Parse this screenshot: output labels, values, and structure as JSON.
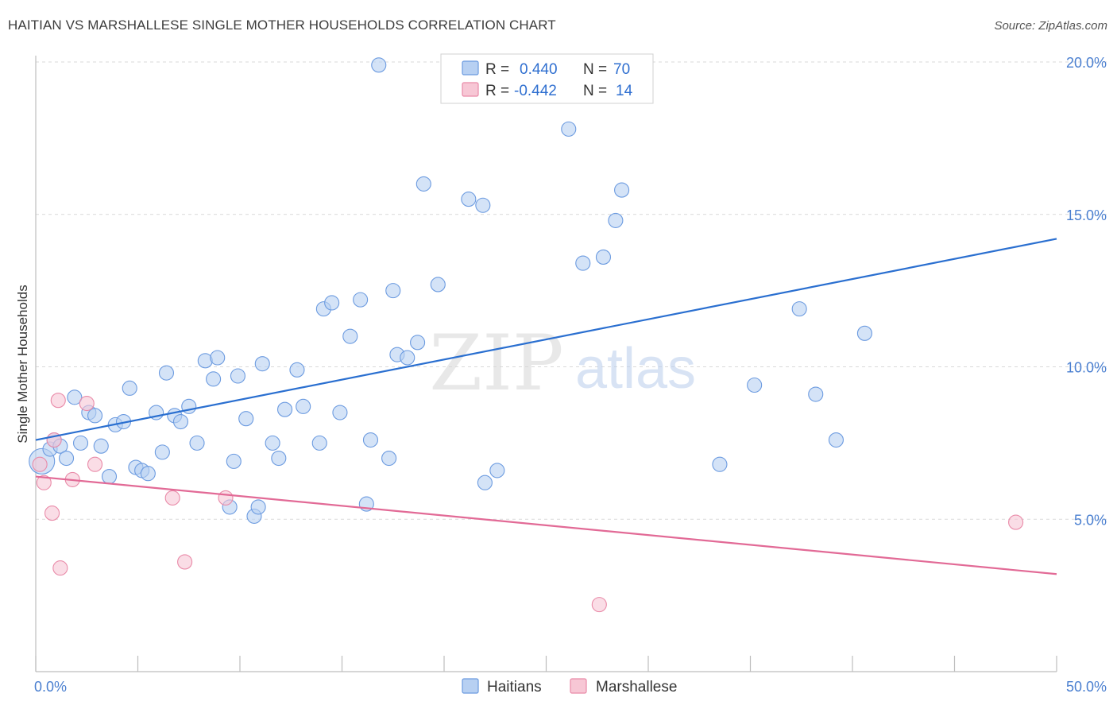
{
  "title": "HAITIAN VS MARSHALLESE SINGLE MOTHER HOUSEHOLDS CORRELATION CHART",
  "source": "Source: ZipAtlas.com",
  "watermark": {
    "zip": "ZIP",
    "atlas": "atlas"
  },
  "colors": {
    "haitians_fill": "#b7d0f2",
    "haitians_stroke": "#6c9be0",
    "haitians_line": "#2a6fd0",
    "marshallese_fill": "#f7c7d5",
    "marshallese_stroke": "#e98aa8",
    "marshallese_line": "#e26a96",
    "grid": "#d9d9d9",
    "axis": "#bdbdbd",
    "tick_label": "#4a7fd0"
  },
  "legend": {
    "rows": [
      {
        "r_label": "R =",
        "r_value": "0.440",
        "n_label": "N =",
        "n_value": "70"
      },
      {
        "r_label": "R =",
        "r_value": "-0.442",
        "n_label": "N =",
        "n_value": "14"
      }
    ]
  },
  "chart_data": {
    "type": "scatter",
    "title": "HAITIAN VS MARSHALLESE SINGLE MOTHER HOUSEHOLDS CORRELATION CHART",
    "xlabel": "",
    "ylabel": "Single Mother Households",
    "xlim": [
      0,
      50
    ],
    "ylim": [
      0,
      20.5
    ],
    "x_tick_labels": [
      "0.0%",
      "50.0%"
    ],
    "y_ticks": [
      5,
      10,
      15,
      20
    ],
    "y_tick_labels": [
      "5.0%",
      "10.0%",
      "15.0%",
      "20.0%"
    ],
    "grid": "horizontal dashed",
    "legend_position": "top-center",
    "series": [
      {
        "name": "Haitians",
        "R": 0.44,
        "N": 70,
        "trend": {
          "x": [
            0,
            50
          ],
          "y": [
            7.6,
            14.2
          ]
        },
        "points": [
          [
            0.3,
            6.9
          ],
          [
            0.7,
            7.3
          ],
          [
            0.9,
            7.6
          ],
          [
            1.2,
            7.4
          ],
          [
            1.5,
            7.0
          ],
          [
            1.9,
            9.0
          ],
          [
            2.2,
            7.5
          ],
          [
            2.6,
            8.5
          ],
          [
            2.9,
            8.4
          ],
          [
            3.2,
            7.4
          ],
          [
            3.6,
            6.4
          ],
          [
            3.9,
            8.1
          ],
          [
            4.3,
            8.2
          ],
          [
            4.6,
            9.3
          ],
          [
            4.9,
            6.7
          ],
          [
            5.2,
            6.6
          ],
          [
            5.5,
            6.5
          ],
          [
            5.9,
            8.5
          ],
          [
            6.2,
            7.2
          ],
          [
            6.4,
            9.8
          ],
          [
            6.8,
            8.4
          ],
          [
            7.1,
            8.2
          ],
          [
            7.5,
            8.7
          ],
          [
            7.9,
            7.5
          ],
          [
            8.3,
            10.2
          ],
          [
            8.7,
            9.6
          ],
          [
            8.9,
            10.3
          ],
          [
            9.5,
            5.4
          ],
          [
            9.7,
            6.9
          ],
          [
            9.9,
            9.7
          ],
          [
            10.3,
            8.3
          ],
          [
            10.7,
            5.1
          ],
          [
            10.9,
            5.4
          ],
          [
            11.1,
            10.1
          ],
          [
            11.6,
            7.5
          ],
          [
            11.9,
            7.0
          ],
          [
            12.2,
            8.6
          ],
          [
            12.8,
            9.9
          ],
          [
            13.1,
            8.7
          ],
          [
            13.9,
            7.5
          ],
          [
            14.1,
            11.9
          ],
          [
            14.5,
            12.1
          ],
          [
            14.9,
            8.5
          ],
          [
            15.4,
            11.0
          ],
          [
            15.9,
            12.2
          ],
          [
            16.2,
            5.5
          ],
          [
            16.4,
            7.6
          ],
          [
            16.8,
            19.9
          ],
          [
            17.3,
            7.0
          ],
          [
            17.5,
            12.5
          ],
          [
            17.7,
            10.4
          ],
          [
            18.2,
            10.3
          ],
          [
            18.7,
            10.8
          ],
          [
            19.0,
            16.0
          ],
          [
            19.7,
            12.7
          ],
          [
            21.2,
            15.5
          ],
          [
            21.9,
            15.3
          ],
          [
            22.0,
            6.2
          ],
          [
            22.6,
            6.6
          ],
          [
            26.1,
            17.8
          ],
          [
            26.8,
            13.4
          ],
          [
            27.8,
            13.6
          ],
          [
            28.4,
            14.8
          ],
          [
            28.7,
            15.8
          ],
          [
            33.5,
            6.8
          ],
          [
            35.2,
            9.4
          ],
          [
            37.4,
            11.9
          ],
          [
            38.2,
            9.1
          ],
          [
            39.2,
            7.6
          ],
          [
            40.6,
            11.1
          ]
        ]
      },
      {
        "name": "Marshallese",
        "R": -0.442,
        "N": 14,
        "trend": {
          "x": [
            0,
            50
          ],
          "y": [
            6.4,
            3.2
          ]
        },
        "points": [
          [
            0.2,
            6.8
          ],
          [
            0.4,
            6.2
          ],
          [
            0.8,
            5.2
          ],
          [
            0.9,
            7.6
          ],
          [
            1.1,
            8.9
          ],
          [
            1.2,
            3.4
          ],
          [
            1.8,
            6.3
          ],
          [
            2.5,
            8.8
          ],
          [
            2.9,
            6.8
          ],
          [
            6.7,
            5.7
          ],
          [
            7.3,
            3.6
          ],
          [
            9.3,
            5.7
          ],
          [
            27.6,
            2.2
          ],
          [
            48.0,
            4.9
          ]
        ]
      }
    ]
  }
}
